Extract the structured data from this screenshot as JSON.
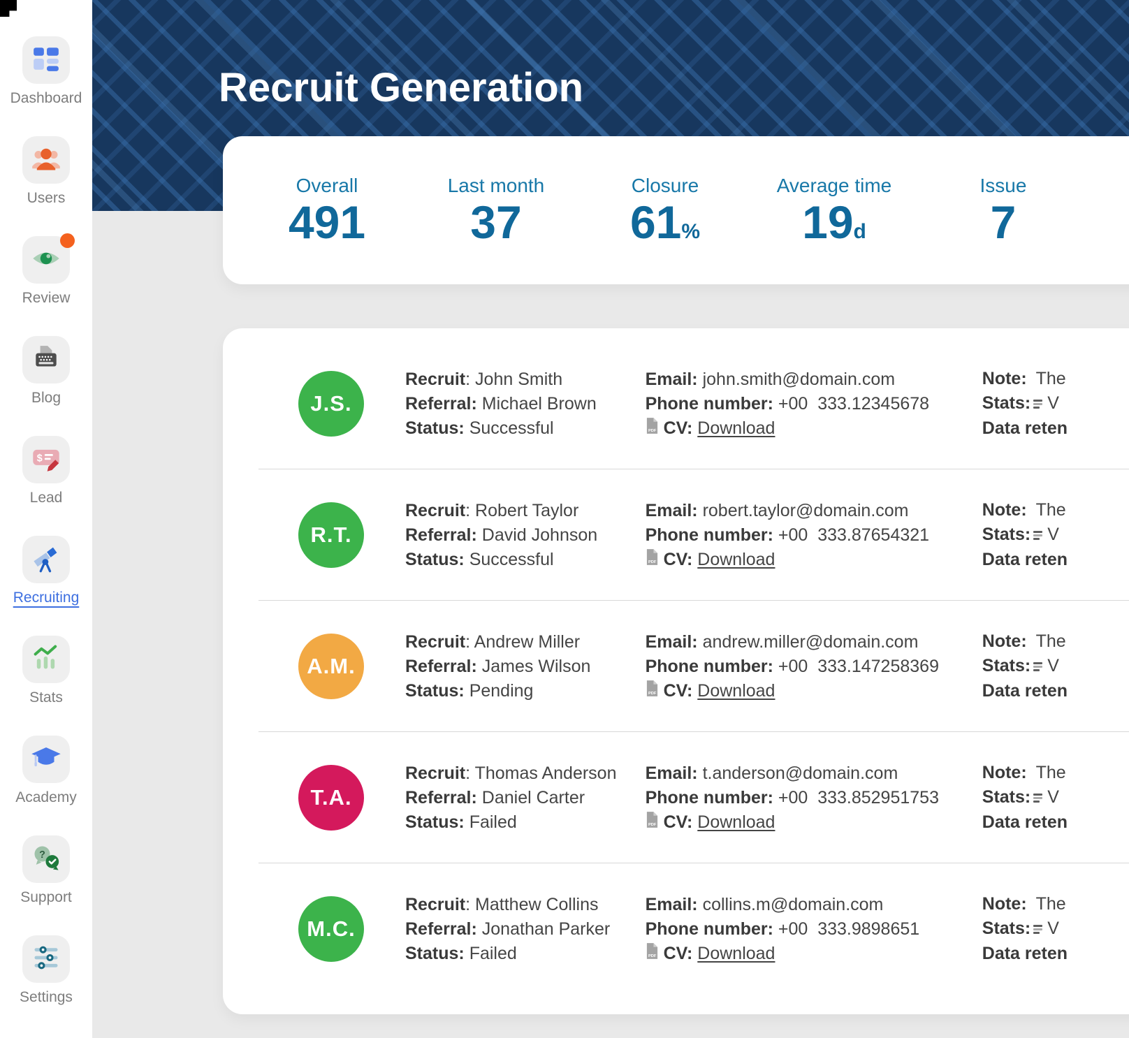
{
  "header": {
    "title": "Recruit Generation"
  },
  "colors": {
    "navy": "#17375e",
    "accent": "#3d6fe0",
    "teal": "#10689a",
    "badge": "#f4611e"
  },
  "sidebar": {
    "items": [
      {
        "label": "Dashboard",
        "icon": "dashboard-icon",
        "active": false,
        "badge": false
      },
      {
        "label": "Users",
        "icon": "users-icon",
        "active": false,
        "badge": false
      },
      {
        "label": "Review",
        "icon": "review-icon",
        "active": false,
        "badge": true
      },
      {
        "label": "Blog",
        "icon": "blog-icon",
        "active": false,
        "badge": false
      },
      {
        "label": "Lead",
        "icon": "lead-icon",
        "active": false,
        "badge": false
      },
      {
        "label": "Recruiting",
        "icon": "recruiting-icon",
        "active": true,
        "badge": false
      },
      {
        "label": "Stats",
        "icon": "stats-icon",
        "active": false,
        "badge": false
      },
      {
        "label": "Academy",
        "icon": "academy-icon",
        "active": false,
        "badge": false
      },
      {
        "label": "Support",
        "icon": "support-icon",
        "active": false,
        "badge": false
      },
      {
        "label": "Settings",
        "icon": "settings-icon",
        "active": false,
        "badge": false
      }
    ]
  },
  "stats": [
    {
      "label": "Overall",
      "value": "491",
      "suffix": ""
    },
    {
      "label": "Last month",
      "value": "37",
      "suffix": ""
    },
    {
      "label": "Closure",
      "value": "61",
      "suffix": "%"
    },
    {
      "label": "Average time",
      "value": "19",
      "suffix": "d"
    },
    {
      "label": "Issue",
      "value": "7",
      "suffix": ""
    }
  ],
  "row_labels": {
    "recruit": "Recruit",
    "colon": ": ",
    "referral": "Referral:",
    "status": "Status:",
    "email": "Email:",
    "phone": "Phone number:",
    "cv": "CV:",
    "download": "Download",
    "note": "Note:",
    "note_text": "The",
    "stats": "Stats:",
    "stats_text": "V",
    "data_retention": "Data reten"
  },
  "recruits": [
    {
      "initials": "J.S.",
      "avatar_color": "#3cb34b",
      "name": "John Smith",
      "referral": "Michael Brown",
      "status": "Successful",
      "email": "john.smith@domain.com",
      "phone": "+00  333.12345678"
    },
    {
      "initials": "R.T.",
      "avatar_color": "#3cb34b",
      "name": "Robert Taylor",
      "referral": "David Johnson",
      "status": "Successful",
      "email": "robert.taylor@domain.com",
      "phone": "+00  333.87654321"
    },
    {
      "initials": "A.M.",
      "avatar_color": "#f2a944",
      "name": "Andrew Miller",
      "referral": "James Wilson",
      "status": "Pending",
      "email": "andrew.miller@domain.com",
      "phone": "+00  333.147258369"
    },
    {
      "initials": "T.A.",
      "avatar_color": "#d4195c",
      "name": "Thomas Anderson",
      "referral": "Daniel Carter",
      "status": "Failed",
      "email": "t.anderson@domain.com",
      "phone": "+00  333.852951753"
    },
    {
      "initials": "M.C.",
      "avatar_color": "#3cb34b",
      "name": "Matthew Collins",
      "referral": "Jonathan Parker",
      "status": "Failed",
      "email": "collins.m@domain.com",
      "phone": "+00  333.9898651"
    }
  ]
}
